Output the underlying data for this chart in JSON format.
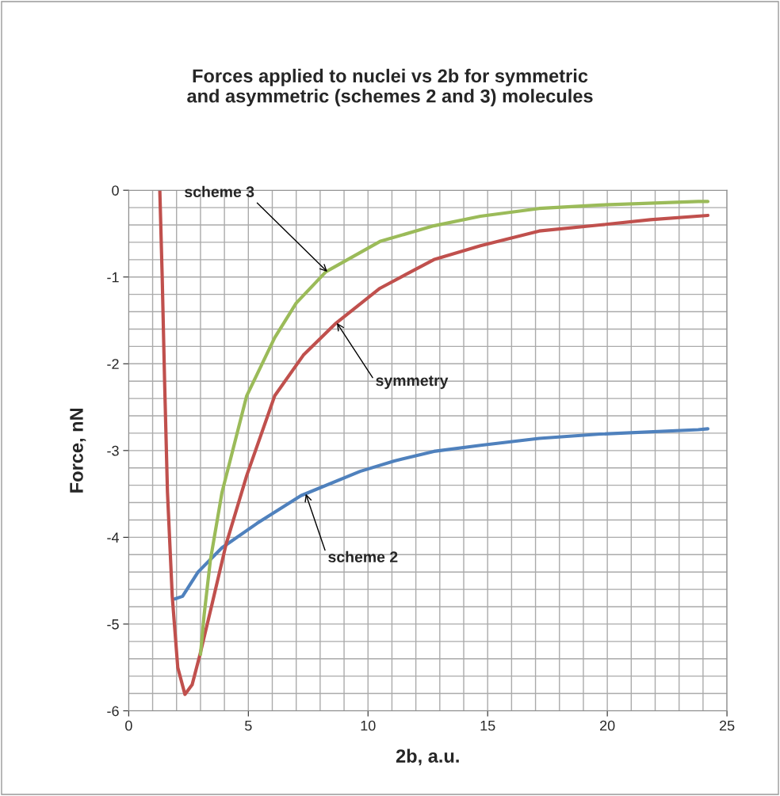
{
  "chart_data": {
    "type": "line",
    "title": "Forces applied to nuclei vs 2b for symmetric\nand asymmetric (schemes 2 and 3) molecules",
    "xlabel": "2b, a.u.",
    "ylabel": "Force, nN",
    "xlim": [
      0,
      25
    ],
    "xticks": [
      0,
      5,
      10,
      15,
      20,
      25
    ],
    "ylim": [
      -6,
      0
    ],
    "yticks": [
      -6,
      -5,
      -4,
      -3,
      -2,
      -1,
      0
    ],
    "grid": true,
    "legend": false,
    "marker": "none",
    "line_style": "solid",
    "series": [
      {
        "color": "#4f81bd",
        "x": [
          1.92,
          2.25,
          2.9,
          3.9,
          5.36,
          7.2,
          9.67,
          11.1,
          12.75,
          14.7,
          17.15,
          19.7,
          23.8,
          24.2
        ],
        "values": [
          -4.71,
          -4.68,
          -4.4,
          -4.12,
          -3.84,
          -3.52,
          -3.24,
          -3.12,
          -3.01,
          -2.94,
          -2.86,
          -2.81,
          -2.76,
          -2.75
        ]
      },
      {
        "color": "#c0504d",
        "x": [
          1.3,
          1.4,
          1.5,
          1.62,
          1.82,
          2.05,
          2.35,
          2.65,
          2.98,
          3.5,
          4.07,
          4.93,
          6.1,
          7.3,
          8.67,
          10.5,
          12.75,
          14.7,
          17.15,
          19.7,
          21.8,
          24.2
        ],
        "values": [
          0,
          -1.0,
          -2.2,
          -3.48,
          -4.68,
          -5.5,
          -5.81,
          -5.7,
          -5.35,
          -4.75,
          -4.08,
          -3.29,
          -2.37,
          -1.9,
          -1.53,
          -1.13,
          -0.8,
          -0.64,
          -0.47,
          -0.4,
          -0.34,
          -0.29
        ]
      },
      {
        "color": "#9bbb59",
        "x": [
          3.0,
          3.15,
          3.41,
          3.9,
          4.93,
          6.1,
          7.0,
          8.24,
          10.5,
          12.75,
          14.7,
          17.15,
          19.7,
          23.8,
          24.2
        ],
        "values": [
          -5.35,
          -4.9,
          -4.27,
          -3.48,
          -2.37,
          -1.7,
          -1.3,
          -0.94,
          -0.59,
          -0.41,
          -0.3,
          -0.21,
          -0.17,
          -0.13,
          -0.13
        ]
      }
    ],
    "annotations": [
      {
        "text": "scheme 3",
        "x": 8.3,
        "y": -0.94
      },
      {
        "text": "symmetry",
        "x": 8.7,
        "y": -1.53
      },
      {
        "text": "scheme 2",
        "x": 7.4,
        "y": -3.5
      }
    ]
  }
}
